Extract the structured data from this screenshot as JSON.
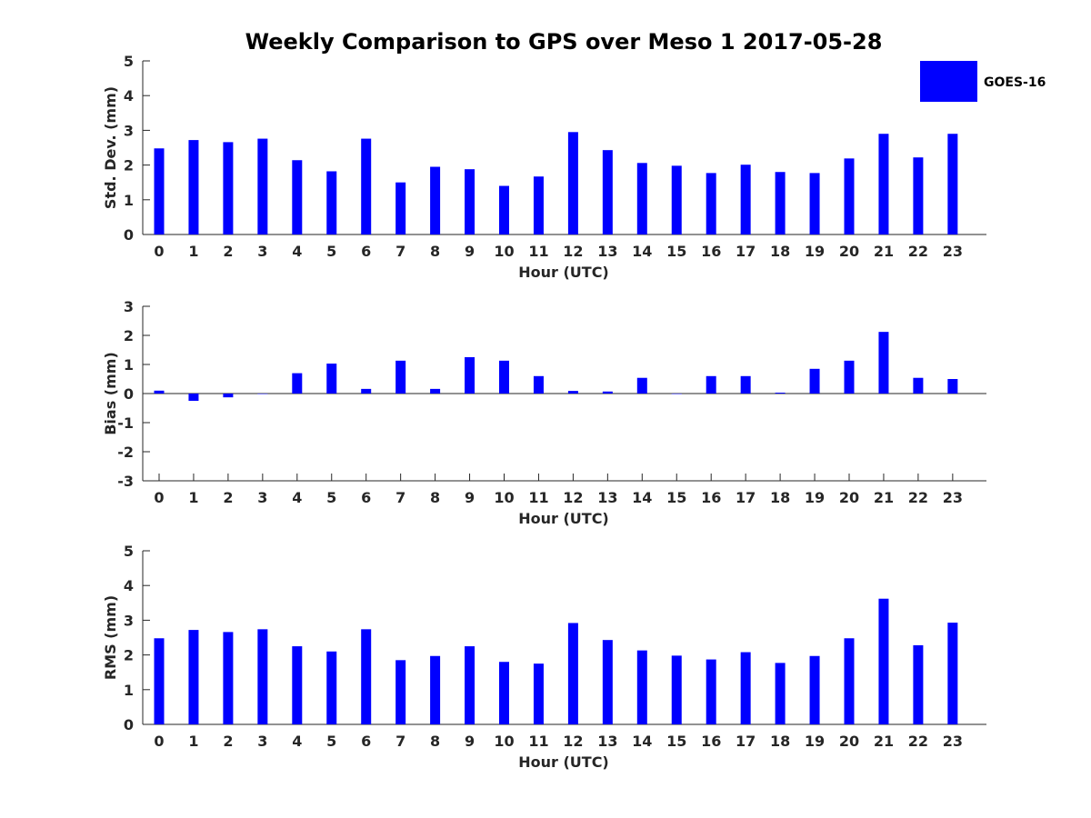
{
  "chart_data": {
    "type": "bar",
    "title": "Weekly Comparison to GPS over Meso 1 2017-05-28",
    "legend": {
      "label": "GOES-16",
      "color": "#0000ff",
      "placement": "top-right"
    },
    "categories": [
      "0",
      "1",
      "2",
      "3",
      "4",
      "5",
      "6",
      "7",
      "8",
      "9",
      "10",
      "11",
      "12",
      "13",
      "14",
      "15",
      "16",
      "17",
      "18",
      "19",
      "20",
      "21",
      "22",
      "23"
    ],
    "panels": [
      {
        "name": "std-dev",
        "xlabel": "Hour (UTC)",
        "ylabel": "Std. Dev. (mm)",
        "ylim": [
          0,
          5
        ],
        "yticks": [
          "0",
          "1",
          "2",
          "3",
          "4",
          "5"
        ],
        "values": [
          2.48,
          2.72,
          2.66,
          2.76,
          2.14,
          1.82,
          2.76,
          1.5,
          1.95,
          1.88,
          1.4,
          1.67,
          2.95,
          2.43,
          2.06,
          1.98,
          1.77,
          2.01,
          1.8,
          1.77,
          2.19,
          2.9,
          2.22,
          2.9
        ]
      },
      {
        "name": "bias",
        "xlabel": "Hour (UTC)",
        "ylabel": "Bias (mm)",
        "ylim": [
          -3,
          3
        ],
        "yticks": [
          "-3",
          "-2",
          "-1",
          "0",
          "1",
          "2",
          "3"
        ],
        "values": [
          0.1,
          -0.25,
          -0.13,
          0.0,
          0.7,
          1.03,
          0.16,
          1.13,
          0.16,
          1.25,
          1.13,
          0.6,
          0.09,
          0.07,
          0.54,
          0.0,
          0.6,
          0.6,
          0.03,
          0.85,
          1.13,
          2.12,
          0.54,
          0.5
        ]
      },
      {
        "name": "rms",
        "xlabel": "Hour (UTC)",
        "ylabel": "RMS (mm)",
        "ylim": [
          0,
          5
        ],
        "yticks": [
          "0",
          "1",
          "2",
          "3",
          "4",
          "5"
        ],
        "values": [
          2.48,
          2.72,
          2.66,
          2.74,
          2.25,
          2.1,
          2.74,
          1.85,
          1.97,
          2.25,
          1.8,
          1.75,
          2.92,
          2.43,
          2.13,
          1.98,
          1.87,
          2.08,
          1.77,
          1.97,
          2.48,
          3.62,
          2.28,
          2.93
        ]
      }
    ]
  }
}
